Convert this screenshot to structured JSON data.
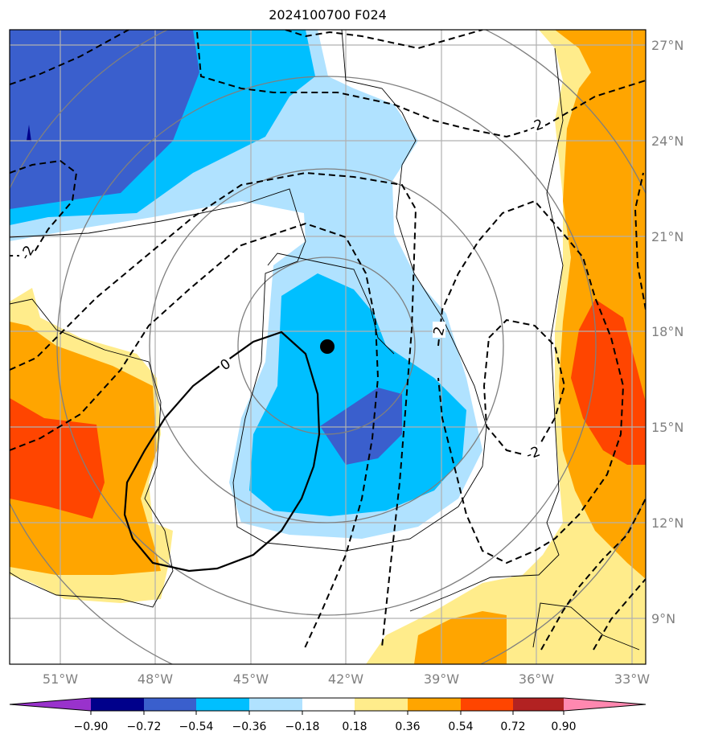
{
  "title": "2024100700 F024",
  "lon_ticks": [
    "51°W",
    "48°W",
    "45°W",
    "42°W",
    "39°W",
    "36°W",
    "33°W"
  ],
  "lat_ticks": [
    "27°N",
    "24°N",
    "21°N",
    "18°N",
    "15°N",
    "12°N",
    "9°N"
  ],
  "colorbar": {
    "ticks": [
      "−0.90",
      "−0.72",
      "−0.54",
      "−0.36",
      "−0.18",
      "0.18",
      "0.36",
      "0.54",
      "0.72",
      "0.90"
    ],
    "colors": [
      "#9932cc",
      "#00008b",
      "#3a5fcd",
      "#00bfff",
      "#b0e2ff",
      "#ffffff",
      "#ffec8b",
      "#ffa500",
      "#ff4500",
      "#b22222",
      "#ff88b0"
    ]
  },
  "contour_labels": {
    "zero": "0",
    "neg2": "-2",
    "pos2": "2"
  },
  "map": {
    "center_marker": {
      "lon": -42.7,
      "lat": 17.5
    },
    "extent": {
      "lon": [
        -52.6,
        -32.6
      ],
      "lat": [
        7.6,
        27.5
      ]
    }
  }
}
